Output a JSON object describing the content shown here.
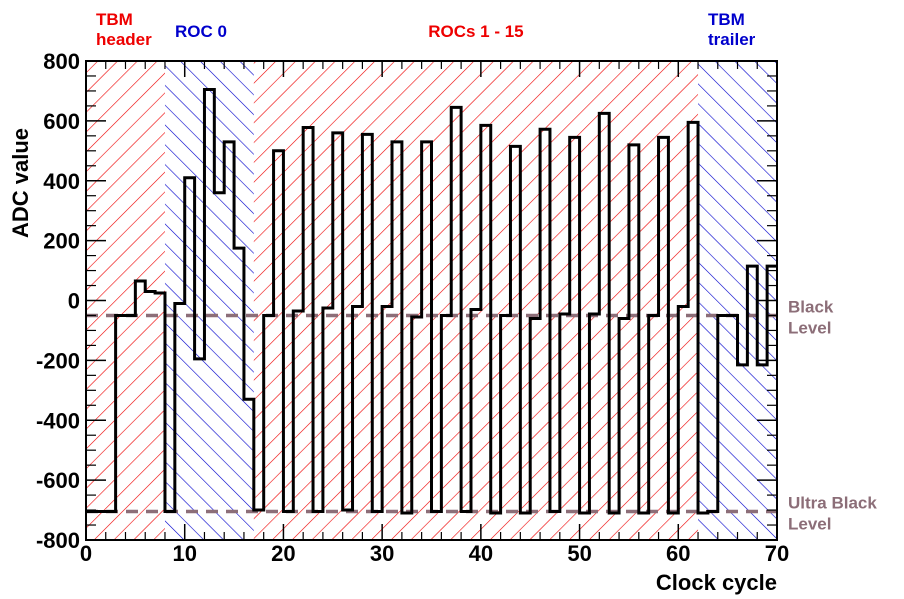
{
  "chart_data": {
    "type": "line",
    "step": true,
    "xlabel": "Clock cycle",
    "ylabel": "ADC value",
    "xlim": [
      0,
      70
    ],
    "ylim": [
      -800,
      800
    ],
    "x_ticks": [
      0,
      10,
      20,
      30,
      40,
      50,
      60,
      70
    ],
    "y_ticks": [
      -800,
      -600,
      -400,
      -200,
      0,
      200,
      400,
      600,
      800
    ],
    "colors": {
      "tbm": "#ee0000",
      "roc": "#0000cc",
      "reference": "#8c6e78",
      "signal": "#000000"
    },
    "regions": [
      {
        "label_lines": [
          "TBM",
          "header"
        ],
        "x_start": 0,
        "x_end": 8,
        "color_key": "tbm"
      },
      {
        "label_lines": [
          "ROC 0"
        ],
        "x_start": 8,
        "x_end": 17,
        "color_key": "roc"
      },
      {
        "label_lines": [
          "ROCs 1 - 15"
        ],
        "x_start": 17,
        "x_end": 62,
        "color_key": "tbm"
      },
      {
        "label_lines": [
          "TBM",
          "trailer"
        ],
        "x_start": 62,
        "x_end": 70,
        "color_key": "roc"
      }
    ],
    "reference_lines": [
      {
        "label_lines": [
          "Black",
          "Level"
        ],
        "y": -50
      },
      {
        "label_lines": [
          "Ultra Black",
          "Level"
        ],
        "y": -705
      }
    ],
    "series": [
      {
        "bins": [
          [
            0,
            -705
          ],
          [
            1,
            -705
          ],
          [
            2,
            -705
          ],
          [
            3,
            -50
          ],
          [
            4,
            -50
          ],
          [
            5,
            65
          ],
          [
            6,
            30
          ],
          [
            7,
            25
          ],
          [
            8,
            -705
          ],
          [
            9,
            -10
          ],
          [
            10,
            410
          ],
          [
            11,
            -195
          ],
          [
            12,
            705
          ],
          [
            13,
            360
          ],
          [
            14,
            530
          ],
          [
            15,
            175
          ],
          [
            16,
            -330
          ],
          [
            17,
            -700
          ],
          [
            18,
            -50
          ],
          [
            19,
            500
          ],
          [
            20,
            -705
          ],
          [
            21,
            -35
          ],
          [
            22,
            578
          ],
          [
            23,
            -705
          ],
          [
            24,
            -25
          ],
          [
            25,
            560
          ],
          [
            26,
            -700
          ],
          [
            27,
            -20
          ],
          [
            28,
            555
          ],
          [
            29,
            -705
          ],
          [
            30,
            -20
          ],
          [
            31,
            530
          ],
          [
            32,
            -710
          ],
          [
            33,
            -55
          ],
          [
            34,
            530
          ],
          [
            35,
            -705
          ],
          [
            36,
            -50
          ],
          [
            37,
            645
          ],
          [
            38,
            -705
          ],
          [
            39,
            -30
          ],
          [
            40,
            585
          ],
          [
            41,
            -710
          ],
          [
            42,
            -50
          ],
          [
            43,
            515
          ],
          [
            44,
            -710
          ],
          [
            45,
            -60
          ],
          [
            46,
            572
          ],
          [
            47,
            -705
          ],
          [
            48,
            -45
          ],
          [
            49,
            545
          ],
          [
            50,
            -710
          ],
          [
            51,
            -45
          ],
          [
            52,
            625
          ],
          [
            53,
            -710
          ],
          [
            54,
            -60
          ],
          [
            55,
            520
          ],
          [
            56,
            -710
          ],
          [
            57,
            -50
          ],
          [
            58,
            545
          ],
          [
            59,
            -710
          ],
          [
            60,
            -20
          ],
          [
            61,
            595
          ],
          [
            62,
            -710
          ],
          [
            63,
            -705
          ],
          [
            64,
            -50
          ],
          [
            65,
            -50
          ],
          [
            66,
            -215
          ],
          [
            67,
            115
          ],
          [
            68,
            -215
          ],
          [
            69,
            115
          ]
        ]
      }
    ]
  }
}
